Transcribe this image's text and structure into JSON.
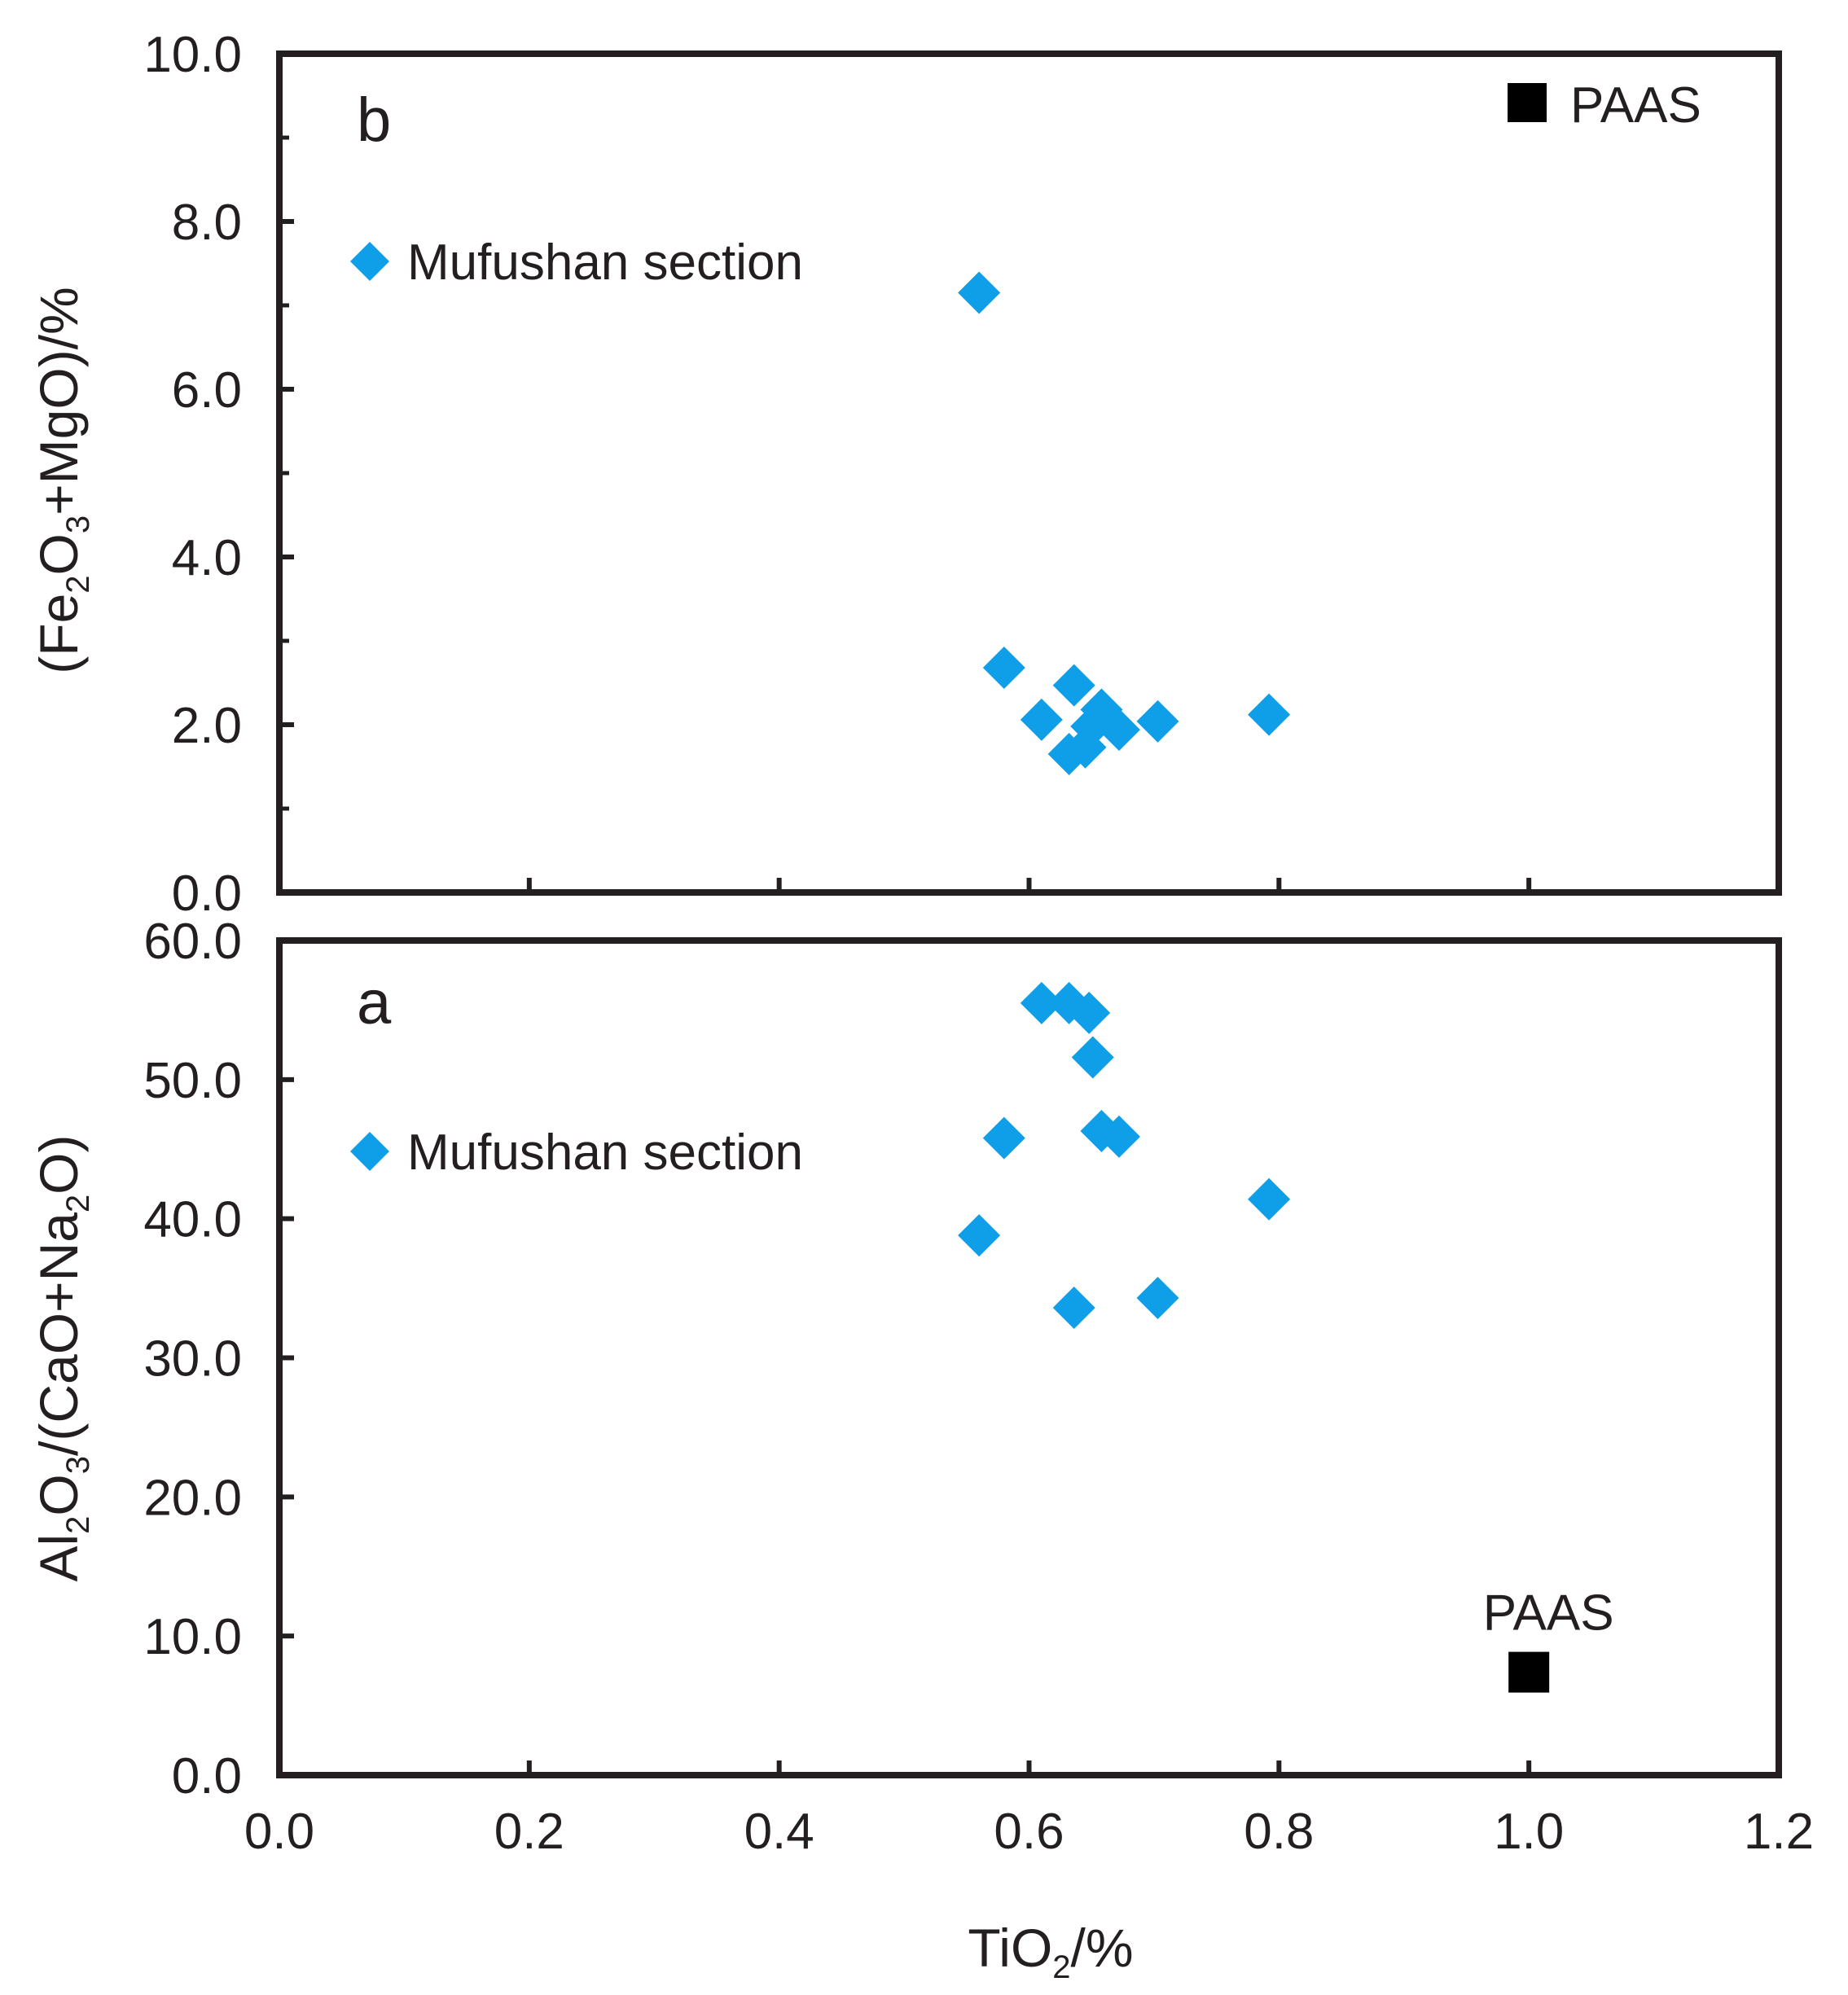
{
  "colors": {
    "marker": "#0f9ee8",
    "paas": "#000000",
    "axis": "#231f20"
  },
  "chart_data": [
    {
      "id": "b",
      "type": "scatter",
      "panel_label": "b",
      "xlim": [
        0.0,
        1.2
      ],
      "ylim": [
        0.0,
        10.0
      ],
      "x_ticks": [
        0.0,
        0.2,
        0.4,
        0.6,
        0.8,
        1.0,
        1.2
      ],
      "y_ticks": [
        0.0,
        2.0,
        4.0,
        6.0,
        8.0,
        10.0
      ],
      "y_tick_labels": [
        "0.0",
        "2.0",
        "4.0",
        "6.0",
        "8.0",
        "10.0"
      ],
      "ylabel_parts": [
        {
          "t": "(Fe",
          "sub": false
        },
        {
          "t": "2",
          "sub": true
        },
        {
          "t": "O",
          "sub": false
        },
        {
          "t": "3",
          "sub": true
        },
        {
          "t": "+MgO)/%",
          "sub": false
        }
      ],
      "legend": {
        "label": "Mufushan section",
        "paas_label": "PAAS"
      },
      "series": [
        {
          "name": "Mufushan section",
          "marker": "diamond",
          "points": [
            {
              "x": 0.56,
              "y": 7.15
            },
            {
              "x": 0.58,
              "y": 2.68
            },
            {
              "x": 0.61,
              "y": 2.06
            },
            {
              "x": 0.636,
              "y": 2.47
            },
            {
              "x": 0.632,
              "y": 1.65
            },
            {
              "x": 0.645,
              "y": 1.73
            },
            {
              "x": 0.65,
              "y": 1.98
            },
            {
              "x": 0.658,
              "y": 2.18
            },
            {
              "x": 0.672,
              "y": 1.94
            },
            {
              "x": 0.703,
              "y": 2.04
            },
            {
              "x": 0.792,
              "y": 2.12
            }
          ]
        },
        {
          "name": "PAAS",
          "marker": "square",
          "points": [
            {
              "x": 1.0,
              "y": 9.0
            }
          ]
        }
      ]
    },
    {
      "id": "a",
      "type": "scatter",
      "panel_label": "a",
      "xlim": [
        0.0,
        1.2
      ],
      "ylim": [
        0.0,
        60.0
      ],
      "x_ticks": [
        0.0,
        0.2,
        0.4,
        0.6,
        0.8,
        1.0,
        1.2
      ],
      "x_tick_labels": [
        "0.0",
        "0.2",
        "0.4",
        "0.6",
        "0.8",
        "1.0",
        "1.2"
      ],
      "y_ticks": [
        0.0,
        10.0,
        20.0,
        30.0,
        40.0,
        50.0,
        60.0
      ],
      "y_tick_labels": [
        "0.0",
        "10.0",
        "20.0",
        "30.0",
        "40.0",
        "50.0",
        "60.0"
      ],
      "xlabel_parts": [
        {
          "t": "TiO",
          "sub": false
        },
        {
          "t": "2",
          "sub": true
        },
        {
          "t": "/%",
          "sub": false
        }
      ],
      "ylabel_parts": [
        {
          "t": "Al",
          "sub": false
        },
        {
          "t": "2",
          "sub": true
        },
        {
          "t": "O",
          "sub": false
        },
        {
          "t": "3",
          "sub": true
        },
        {
          "t": "/(CaO+Na",
          "sub": false
        },
        {
          "t": "2",
          "sub": true
        },
        {
          "t": "O)",
          "sub": false
        }
      ],
      "legend": {
        "label": "Mufushan section",
        "paas_label": "PAAS"
      },
      "series": [
        {
          "name": "Mufushan section",
          "marker": "diamond",
          "points": [
            {
              "x": 0.61,
              "y": 55.5
            },
            {
              "x": 0.632,
              "y": 55.5
            },
            {
              "x": 0.648,
              "y": 54.8
            },
            {
              "x": 0.651,
              "y": 51.6
            },
            {
              "x": 0.658,
              "y": 46.3
            },
            {
              "x": 0.672,
              "y": 45.9
            },
            {
              "x": 0.58,
              "y": 45.8
            },
            {
              "x": 0.792,
              "y": 41.4
            },
            {
              "x": 0.56,
              "y": 38.8
            },
            {
              "x": 0.703,
              "y": 34.3
            },
            {
              "x": 0.636,
              "y": 33.6
            }
          ]
        },
        {
          "name": "PAAS",
          "marker": "square",
          "points": [
            {
              "x": 1.0,
              "y": 7.4
            }
          ]
        }
      ]
    }
  ]
}
